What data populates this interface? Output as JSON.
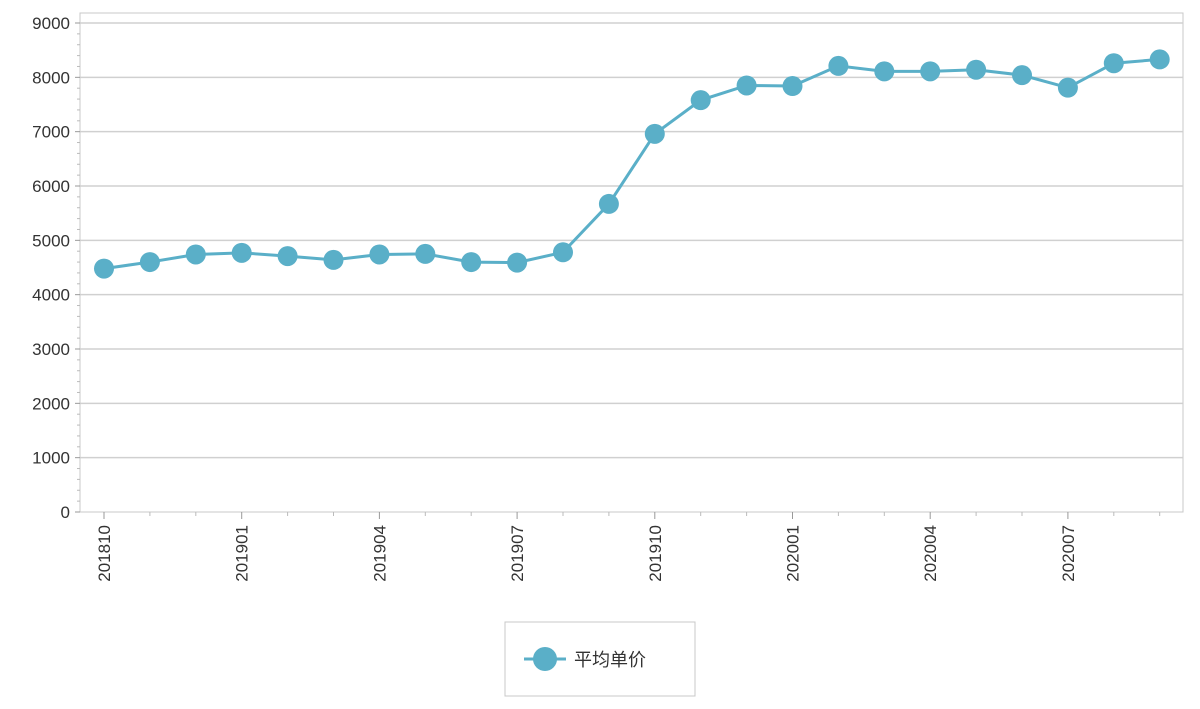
{
  "chart_data": {
    "type": "line",
    "x": [
      "201810",
      "201811",
      "201812",
      "201901",
      "201902",
      "201903",
      "201904",
      "201905",
      "201906",
      "201907",
      "201908",
      "201909",
      "201910",
      "201911",
      "201912",
      "202001",
      "202002",
      "202003",
      "202004",
      "202005",
      "202006",
      "202007",
      "202008",
      "202009"
    ],
    "x_tick_labels": [
      "201810",
      "201901",
      "201904",
      "201907",
      "201910",
      "202001",
      "202004",
      "202007"
    ],
    "y_ticks": [
      0,
      1000,
      2000,
      3000,
      4000,
      5000,
      6000,
      7000,
      8000,
      9000
    ],
    "ylim": [
      0,
      9000
    ],
    "series": [
      {
        "name": "平均单价",
        "color": "#5aafc8",
        "values": [
          4480,
          4600,
          4740,
          4770,
          4710,
          4640,
          4740,
          4750,
          4600,
          4590,
          4780,
          5670,
          6960,
          7580,
          7850,
          7840,
          8210,
          8110,
          8110,
          8140,
          8040,
          7810,
          8260,
          8330
        ]
      }
    ],
    "grid": true,
    "legend_position": "bottom-center"
  }
}
